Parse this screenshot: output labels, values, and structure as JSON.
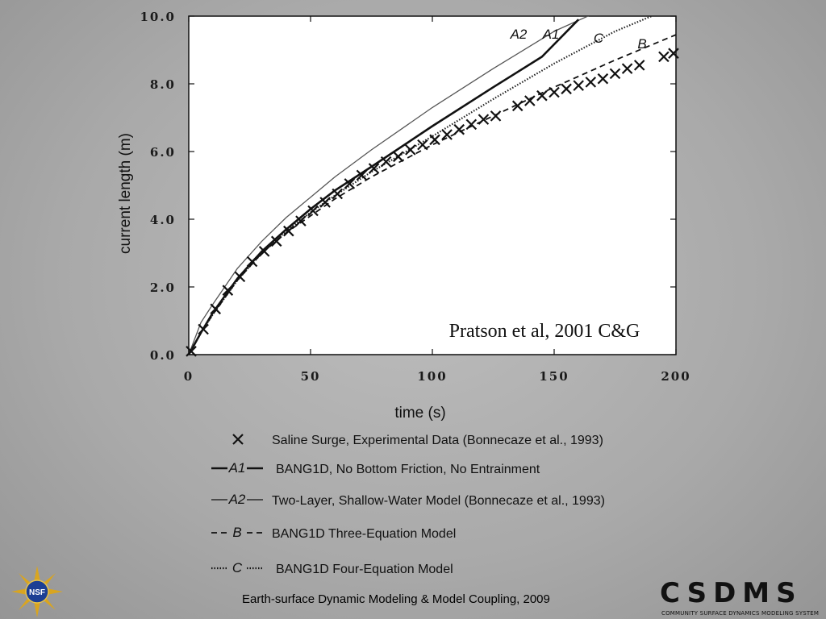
{
  "chart_data": {
    "type": "line",
    "xlabel": "time (s)",
    "ylabel": "current length (m)",
    "xlim": [
      0,
      200
    ],
    "ylim": [
      0,
      10
    ],
    "x_ticks": [
      "0",
      "50",
      "100",
      "150",
      "200"
    ],
    "y_ticks": [
      "0.0",
      "2.0",
      "4.0",
      "6.0",
      "8.0",
      "10.0"
    ],
    "annotation": "Pratson et al, 2001 C&G",
    "series": [
      {
        "key": "A2",
        "label": "A2",
        "style": "thin-solid",
        "color": "#555555",
        "x": [
          0,
          5,
          10,
          20,
          30,
          40,
          50,
          60,
          75,
          100,
          125,
          150,
          170
        ],
        "y": [
          0,
          0.95,
          1.5,
          2.55,
          3.35,
          4.05,
          4.65,
          5.25,
          6.05,
          7.3,
          8.45,
          9.55,
          10.2
        ]
      },
      {
        "key": "A1",
        "label": "A1",
        "style": "thick-solid",
        "color": "#111111",
        "x": [
          0,
          5,
          10,
          20,
          30,
          40,
          50,
          60,
          75,
          100,
          125,
          145,
          160
        ],
        "y": [
          0,
          0.65,
          1.25,
          2.25,
          3.05,
          3.7,
          4.3,
          4.85,
          5.55,
          6.75,
          7.9,
          8.8,
          9.9
        ]
      },
      {
        "key": "C",
        "label": "C",
        "style": "dotted",
        "color": "#222222",
        "x": [
          0,
          5,
          10,
          20,
          30,
          40,
          50,
          60,
          75,
          100,
          125,
          150,
          175,
          190
        ],
        "y": [
          0,
          0.65,
          1.2,
          2.2,
          3.0,
          3.65,
          4.2,
          4.7,
          5.4,
          6.45,
          7.55,
          8.6,
          9.55,
          10.0
        ]
      },
      {
        "key": "B",
        "label": "B",
        "style": "dashed",
        "color": "#111111",
        "x": [
          0,
          5,
          10,
          20,
          30,
          40,
          50,
          60,
          75,
          100,
          125,
          150,
          175,
          200
        ],
        "y": [
          0,
          0.65,
          1.2,
          2.2,
          3.0,
          3.6,
          4.1,
          4.6,
          5.25,
          6.2,
          7.05,
          7.9,
          8.7,
          9.45
        ]
      },
      {
        "key": "data",
        "label": "",
        "style": "x-marker",
        "color": "#111111",
        "x": [
          1,
          6,
          11,
          16,
          21,
          26,
          31,
          36,
          41,
          46,
          51,
          56,
          61,
          66,
          71,
          76,
          81,
          86,
          91,
          96,
          101,
          106,
          111,
          116,
          121,
          126,
          135,
          140,
          145,
          150,
          155,
          160,
          165,
          170,
          175,
          180,
          185,
          195,
          199
        ],
        "y": [
          0.1,
          0.75,
          1.35,
          1.9,
          2.3,
          2.75,
          3.05,
          3.35,
          3.65,
          3.95,
          4.25,
          4.5,
          4.75,
          5.05,
          5.3,
          5.5,
          5.7,
          5.85,
          6.05,
          6.2,
          6.35,
          6.5,
          6.65,
          6.8,
          6.95,
          7.05,
          7.35,
          7.5,
          7.65,
          7.75,
          7.85,
          7.95,
          8.05,
          8.15,
          8.3,
          8.45,
          8.55,
          8.8,
          8.9
        ]
      }
    ],
    "legend": [
      {
        "symbol": "×",
        "style": "x-marker",
        "text": "Saline Surge, Experimental Data (Bonnecaze et al., 1993)"
      },
      {
        "symbol": "A1",
        "style": "thick-solid",
        "text": "BANG1D, No Bottom Friction, No Entrainment"
      },
      {
        "symbol": "A2",
        "style": "thin-solid",
        "text": "Two-Layer, Shallow-Water Model (Bonnecaze et al., 1993)"
      },
      {
        "symbol": "B",
        "style": "dashed",
        "text": "BANG1D Three-Equation Model"
      },
      {
        "symbol": "C",
        "style": "dotted",
        "text": "BANG1D Four-Equation Model"
      }
    ]
  },
  "footer": {
    "text": "Earth-surface Dynamic Modeling & Model Coupling, 2009"
  },
  "logos": {
    "nsf_text": "NSF",
    "csdms_word": "CSDMS",
    "csdms_subtitle": "COMMUNITY SURFACE DYNAMICS MODELING SYSTEM"
  }
}
